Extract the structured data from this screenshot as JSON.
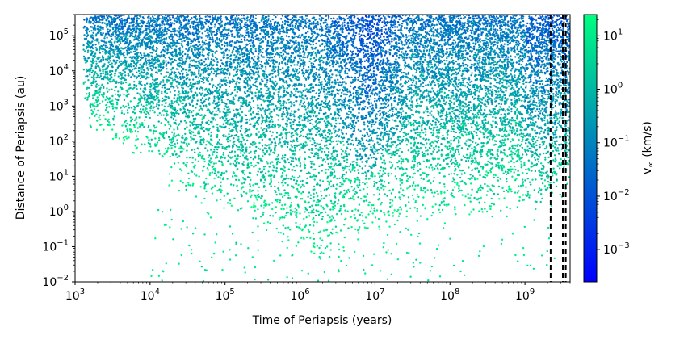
{
  "chart_data": {
    "type": "scatter",
    "xlabel": "Time of Periapsis (years)",
    "ylabel": "Distance of Periapsis (au)",
    "x_scale": "log",
    "y_scale": "log",
    "xlim": [
      1000,
      4000000000
    ],
    "ylim": [
      0.01,
      400000
    ],
    "x_ticks": [
      {
        "value": 1000,
        "base": "10",
        "exp": "3"
      },
      {
        "value": 10000,
        "base": "10",
        "exp": "4"
      },
      {
        "value": 100000,
        "base": "10",
        "exp": "5"
      },
      {
        "value": 1000000,
        "base": "10",
        "exp": "6"
      },
      {
        "value": 10000000,
        "base": "10",
        "exp": "7"
      },
      {
        "value": 100000000,
        "base": "10",
        "exp": "8"
      },
      {
        "value": 1000000000,
        "base": "10",
        "exp": "9"
      }
    ],
    "y_ticks": [
      {
        "value": 0.01,
        "base": "10",
        "exp": "−2"
      },
      {
        "value": 0.1,
        "base": "10",
        "exp": "−1"
      },
      {
        "value": 1,
        "base": "10",
        "exp": "0"
      },
      {
        "value": 10,
        "base": "10",
        "exp": "1"
      },
      {
        "value": 100,
        "base": "10",
        "exp": "2"
      },
      {
        "value": 1000,
        "base": "10",
        "exp": "3"
      },
      {
        "value": 10000,
        "base": "10",
        "exp": "4"
      },
      {
        "value": 100000,
        "base": "10",
        "exp": "5"
      }
    ],
    "vertical_lines": [
      {
        "x": 2200000000,
        "style": "dashed",
        "color": "#000000"
      },
      {
        "x": 3200000000,
        "style": "dashed",
        "color": "#000000"
      },
      {
        "x": 3500000000,
        "style": "dashed",
        "color": "#000000"
      }
    ],
    "colorbar": {
      "label": "v∞ (km/s)",
      "label_base": "v",
      "label_sub": "∞",
      "label_rest": " (km/s)",
      "scale": "log",
      "range": [
        0.00025,
        25
      ],
      "colormap": "winter",
      "color_low": "#0000ff",
      "color_high": "#00ff80",
      "ticks": [
        {
          "value": 0.001,
          "base": "10",
          "exp": "−3"
        },
        {
          "value": 0.01,
          "base": "10",
          "exp": "−2"
        },
        {
          "value": 0.1,
          "base": "10",
          "exp": "−1"
        },
        {
          "value": 1,
          "base": "10",
          "exp": "0"
        },
        {
          "value": 10,
          "base": "10",
          "exp": "1"
        }
      ]
    },
    "density": {
      "description_only": false,
      "x_range": [
        1300,
        4000000000
      ],
      "upper_envelope_y": 400000,
      "lower_envelope": [
        {
          "x": 1500,
          "y": 300
        },
        {
          "x": 10000,
          "y": 20
        },
        {
          "x": 100000,
          "y": 0.5
        },
        {
          "x": 2000000,
          "y": 0.05
        },
        {
          "x": 10000000,
          "y": 0.3
        },
        {
          "x": 100000000,
          "y": 0.5
        },
        {
          "x": 1000000000,
          "y": 1
        },
        {
          "x": 4000000000,
          "y": 3
        }
      ],
      "funnel_center_x": 8000000,
      "funnel_tip_y": 10,
      "point_count": 14000
    }
  }
}
